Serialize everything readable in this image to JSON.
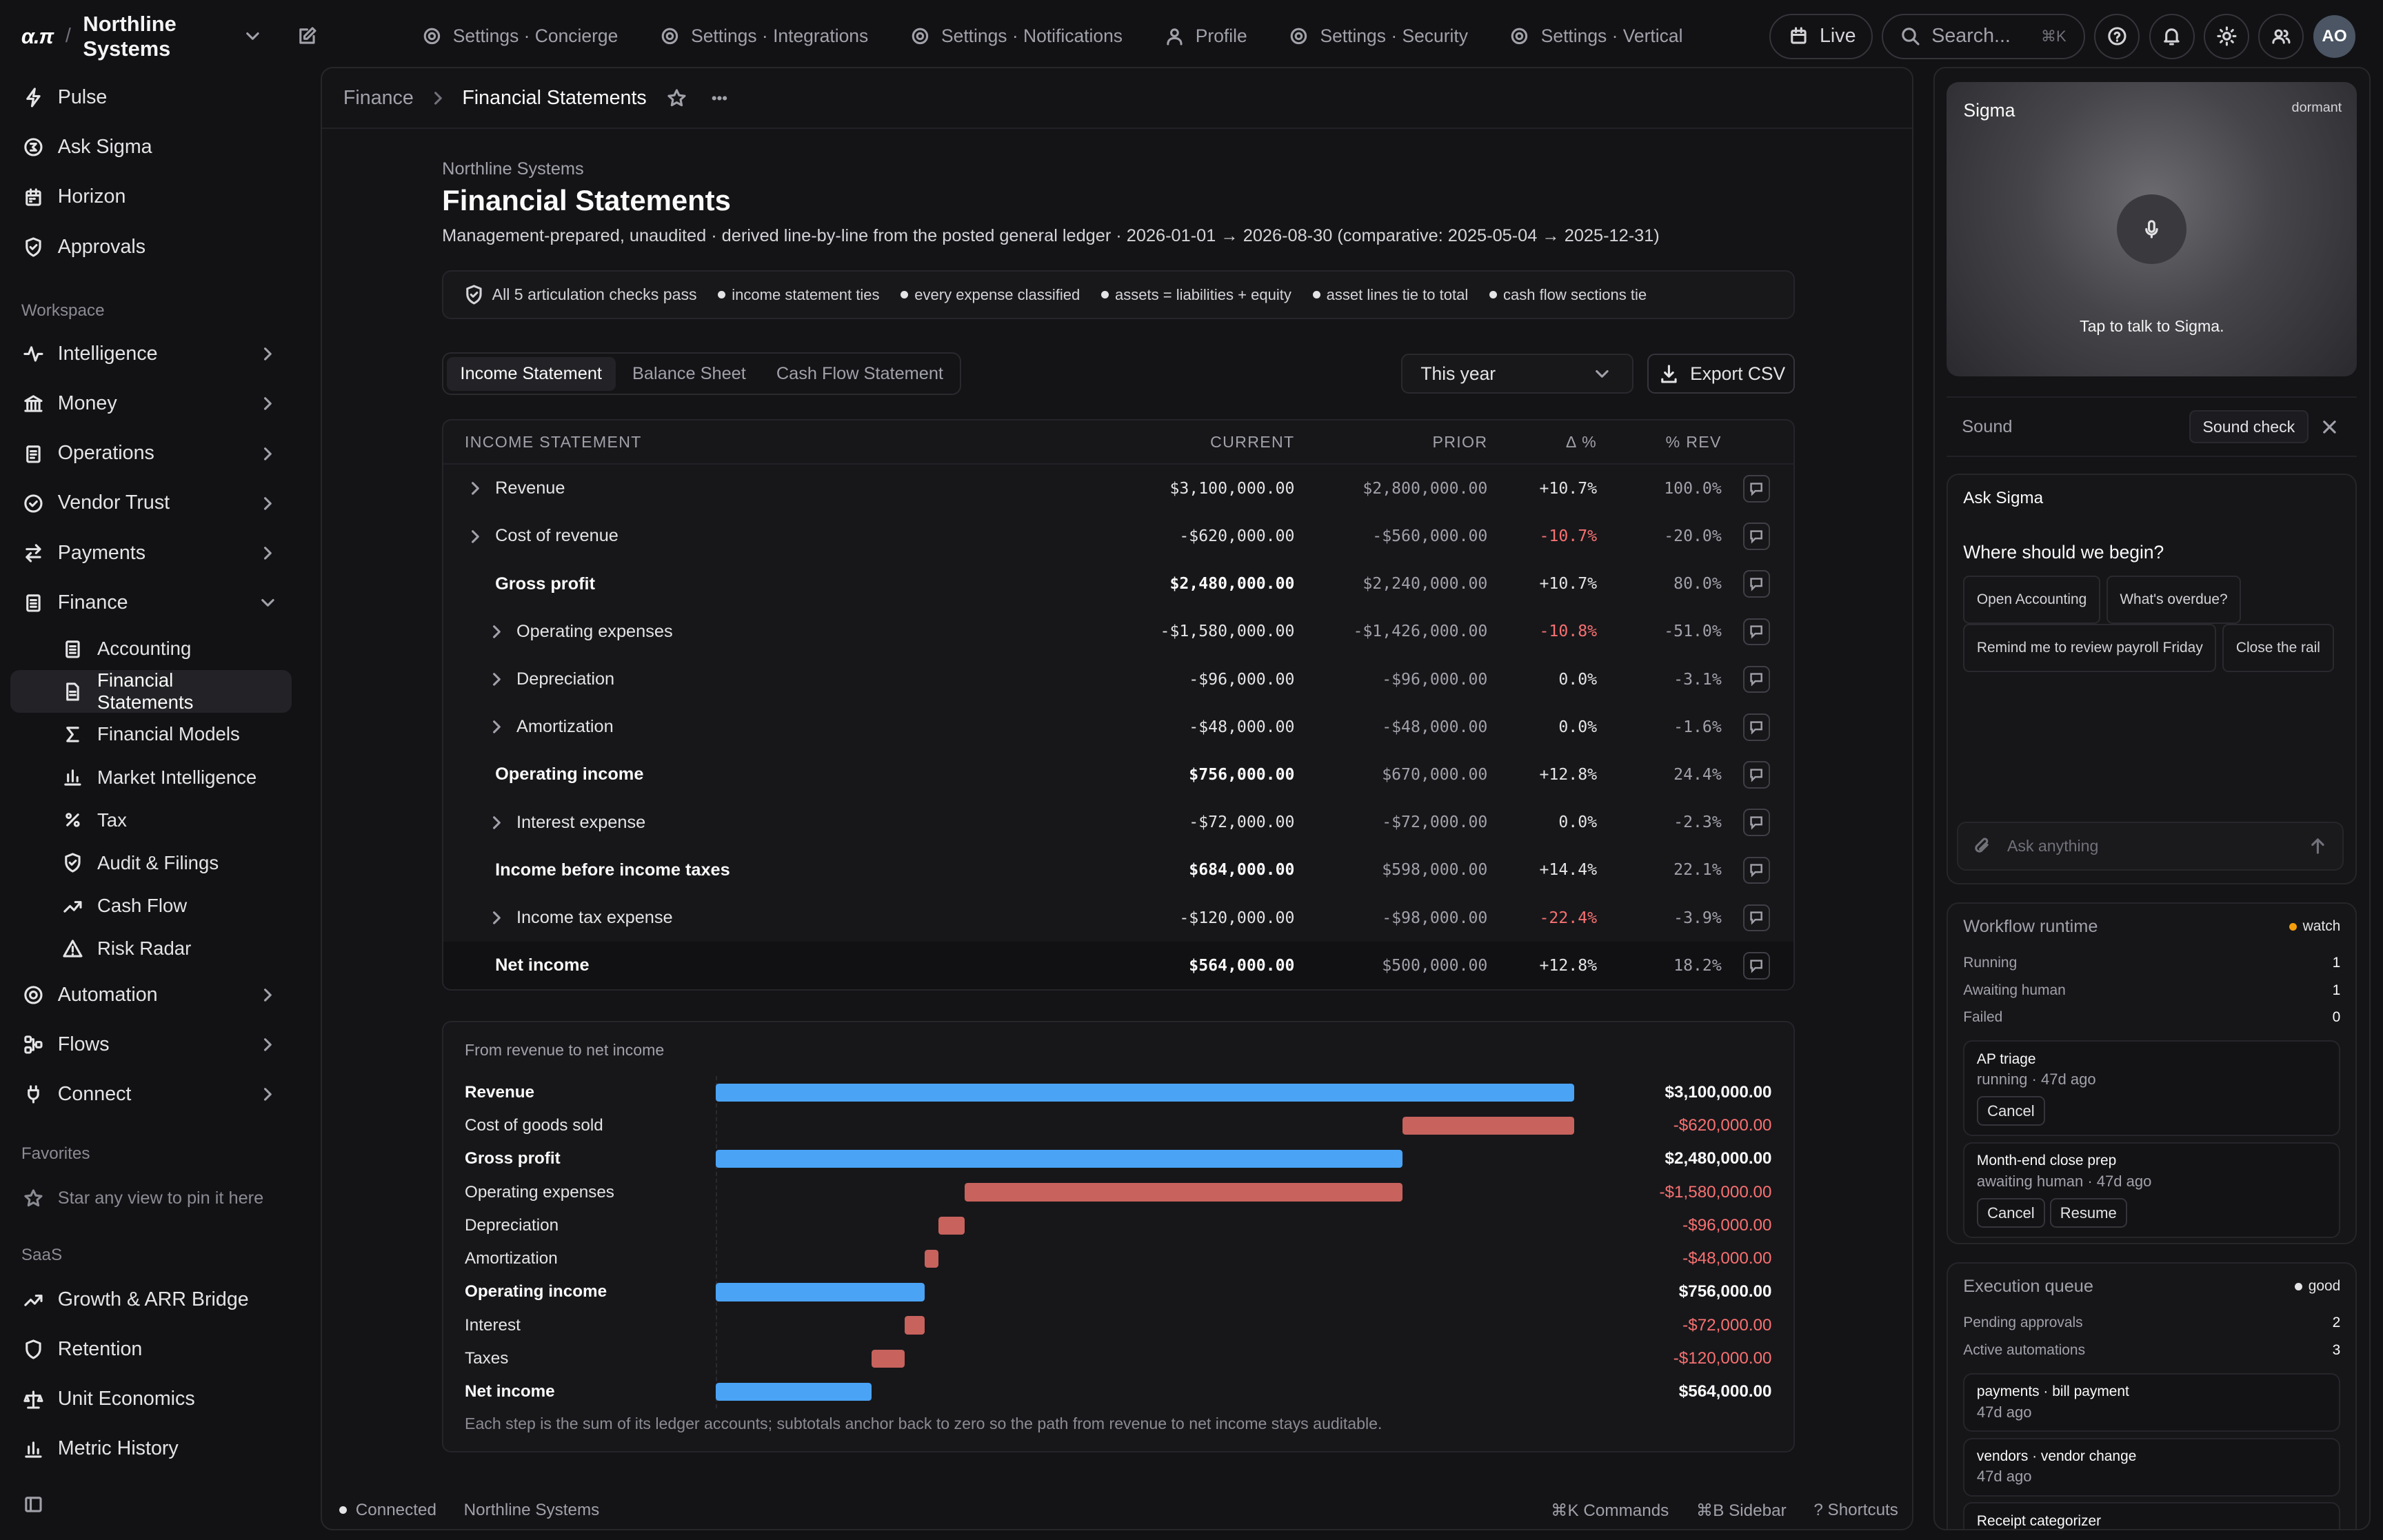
{
  "topbar": {
    "logo": "α.π",
    "org": "Northline Systems",
    "nav": [
      "Settings · Concierge",
      "Settings · Integrations",
      "Settings · Notifications",
      "Profile",
      "Settings · Security",
      "Settings · Vertical"
    ],
    "live": "Live",
    "search_placeholder": "Search...",
    "search_kbd": "⌘K",
    "avatar": "AO"
  },
  "sidebar": {
    "top": [
      "Pulse",
      "Ask Sigma",
      "Horizon",
      "Approvals"
    ],
    "workspace_heading": "Workspace",
    "workspace": [
      "Intelligence",
      "Money",
      "Operations",
      "Vendor Trust",
      "Payments",
      "Finance"
    ],
    "finance_sub": [
      "Accounting",
      "Financial Statements",
      "Financial Models",
      "Market Intelligence",
      "Tax",
      "Audit & Filings",
      "Cash Flow",
      "Risk Radar"
    ],
    "more": [
      "Automation",
      "Flows",
      "Connect"
    ],
    "favorites_heading": "Favorites",
    "favorites_hint": "Star any view to pin it here",
    "saas_heading": "SaaS",
    "saas": [
      "Growth & ARR Bridge",
      "Retention",
      "Unit Economics",
      "Metric History"
    ]
  },
  "breadcrumb": {
    "parent": "Finance",
    "current": "Financial Statements"
  },
  "page": {
    "org": "Northline Systems",
    "title": "Financial Statements",
    "description": "Management-prepared, unaudited · derived line-by-line from the posted general ledger · 2026-01-01 → 2026-08-30 (comparative: 2025-05-04 → 2025-12-31)",
    "checks_summary": "All 5 articulation checks pass",
    "checks": [
      "income statement ties",
      "every expense classified",
      "assets = liabilities + equity",
      "asset lines tie to total",
      "cash flow sections tie"
    ],
    "tabs": [
      "Income Statement",
      "Balance Sheet",
      "Cash Flow Statement"
    ],
    "period": "This year",
    "export": "Export CSV"
  },
  "table": {
    "headers": [
      "INCOME STATEMENT",
      "CURRENT",
      "PRIOR",
      "Δ %",
      "% REV"
    ],
    "rows": [
      {
        "name": "Revenue",
        "current": "$3,100,000.00",
        "prior": "$2,800,000.00",
        "delta": "+10.7%",
        "rev": "100.0%",
        "kind": "expand",
        "indent": 0,
        "neg": false
      },
      {
        "name": "Cost of revenue",
        "current": "-$620,000.00",
        "prior": "-$560,000.00",
        "delta": "-10.7%",
        "rev": "-20.0%",
        "kind": "expand",
        "indent": 0,
        "neg": true
      },
      {
        "name": "Gross profit",
        "current": "$2,480,000.00",
        "prior": "$2,240,000.00",
        "delta": "+10.7%",
        "rev": "80.0%",
        "kind": "bold",
        "indent": 0,
        "neg": false
      },
      {
        "name": "Operating expenses",
        "current": "-$1,580,000.00",
        "prior": "-$1,426,000.00",
        "delta": "-10.8%",
        "rev": "-51.0%",
        "kind": "expand",
        "indent": 1,
        "neg": true
      },
      {
        "name": "Depreciation",
        "current": "-$96,000.00",
        "prior": "-$96,000.00",
        "delta": "0.0%",
        "rev": "-3.1%",
        "kind": "expand",
        "indent": 1,
        "neg": false
      },
      {
        "name": "Amortization",
        "current": "-$48,000.00",
        "prior": "-$48,000.00",
        "delta": "0.0%",
        "rev": "-1.6%",
        "kind": "expand",
        "indent": 1,
        "neg": false
      },
      {
        "name": "Operating income",
        "current": "$756,000.00",
        "prior": "$670,000.00",
        "delta": "+12.8%",
        "rev": "24.4%",
        "kind": "bold",
        "indent": 0,
        "neg": false
      },
      {
        "name": "Interest expense",
        "current": "-$72,000.00",
        "prior": "-$72,000.00",
        "delta": "0.0%",
        "rev": "-2.3%",
        "kind": "expand",
        "indent": 1,
        "neg": false
      },
      {
        "name": "Income before income taxes",
        "current": "$684,000.00",
        "prior": "$598,000.00",
        "delta": "+14.4%",
        "rev": "22.1%",
        "kind": "bold",
        "indent": 0,
        "neg": false
      },
      {
        "name": "Income tax expense",
        "current": "-$120,000.00",
        "prior": "-$98,000.00",
        "delta": "-22.4%",
        "rev": "-3.9%",
        "kind": "expand",
        "indent": 1,
        "neg": true
      },
      {
        "name": "Net income",
        "current": "$564,000.00",
        "prior": "$500,000.00",
        "delta": "+12.8%",
        "rev": "18.2%",
        "kind": "total",
        "indent": 0,
        "neg": false
      }
    ]
  },
  "chart_data": {
    "type": "bar",
    "title": "From revenue to net income",
    "categories": [
      "Revenue",
      "Cost of goods sold",
      "Gross profit",
      "Operating expenses",
      "Depreciation",
      "Amortization",
      "Operating income",
      "Interest",
      "Taxes",
      "Net income"
    ],
    "values": [
      3100000,
      -620000,
      2480000,
      -1580000,
      -96000,
      -48000,
      756000,
      -72000,
      -120000,
      564000
    ],
    "labels": [
      "$3,100,000.00",
      "-$620,000.00",
      "$2,480,000.00",
      "-$1,580,000.00",
      "-$96,000.00",
      "-$48,000.00",
      "$756,000.00",
      "-$72,000.00",
      "-$120,000.00",
      "$564,000.00"
    ],
    "subtotals": [
      true,
      false,
      true,
      false,
      false,
      false,
      true,
      false,
      false,
      true
    ],
    "colors": {
      "positive": "#4aa3f5",
      "negative": "#c8625c"
    },
    "footnote": "Each step is the sum of its ledger accounts; subtotals anchor back to zero so the path from revenue to net income stays auditable."
  },
  "footer": {
    "status": "Connected",
    "org": "Northline Systems",
    "shortcuts": [
      "⌘K Commands",
      "⌘B Sidebar",
      "? Shortcuts"
    ]
  },
  "rail": {
    "voice": {
      "name": "Sigma",
      "state": "dormant",
      "hint": "Tap to talk to Sigma."
    },
    "sound": {
      "label": "Sound",
      "check": "Sound check"
    },
    "ask": {
      "title": "Ask Sigma",
      "prompt": "Where should we begin?",
      "chips": [
        "Open Accounting",
        "What's overdue?",
        "Remind me to review payroll Friday",
        "Close the rail"
      ],
      "input_placeholder": "Ask anything"
    },
    "workflow": {
      "title": "Workflow runtime",
      "status": "watch",
      "stats": [
        {
          "k": "Running",
          "v": "1"
        },
        {
          "k": "Awaiting human",
          "v": "1"
        },
        {
          "k": "Failed",
          "v": "0"
        }
      ],
      "jobs": [
        {
          "name": "AP triage",
          "meta": "running · 47d ago",
          "actions": [
            "Cancel"
          ]
        },
        {
          "name": "Month-end close prep",
          "meta": "awaiting human · 47d ago",
          "actions": [
            "Cancel",
            "Resume"
          ]
        }
      ]
    },
    "queue": {
      "title": "Execution queue",
      "status": "good",
      "stats": [
        {
          "k": "Pending approvals",
          "v": "2"
        },
        {
          "k": "Active automations",
          "v": "3"
        }
      ],
      "items": [
        {
          "name": "payments · bill payment",
          "meta": "47d ago"
        },
        {
          "name": "vendors · vendor change",
          "meta": "47d ago"
        },
        {
          "name": "Receipt categorizer",
          "meta": ""
        }
      ]
    }
  }
}
